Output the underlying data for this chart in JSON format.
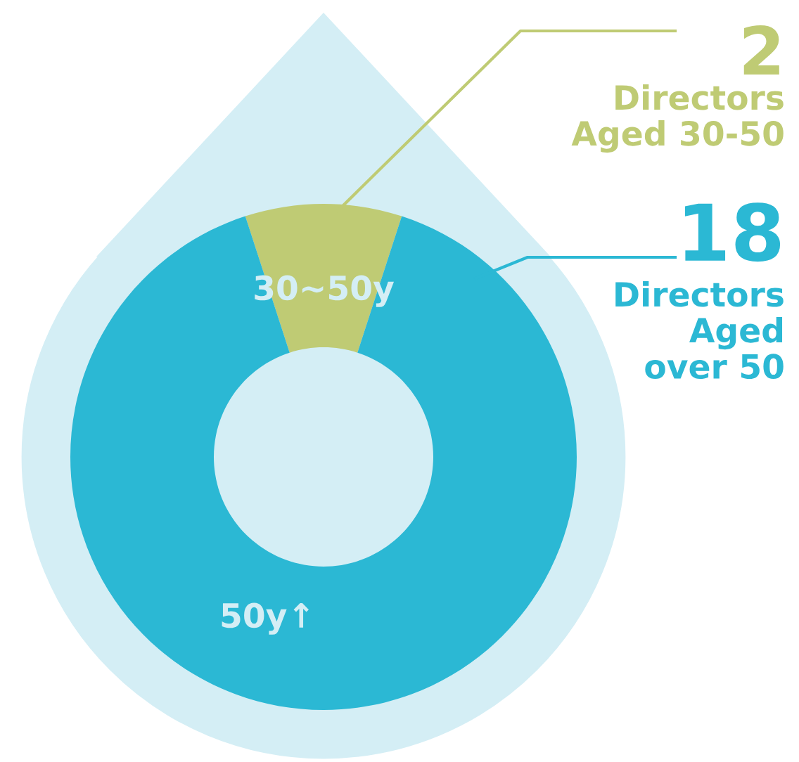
{
  "chart_data": {
    "type": "donut",
    "categories": [
      "30~50y",
      "50y↑"
    ],
    "values": [
      2,
      18
    ],
    "colors": [
      "#bfcb74",
      "#2bb8d4"
    ],
    "value_labels": [
      "2",
      "18"
    ],
    "annotations": [
      "Directors\nAged 30-50",
      "Directors\nAged\nover 50"
    ]
  }
}
